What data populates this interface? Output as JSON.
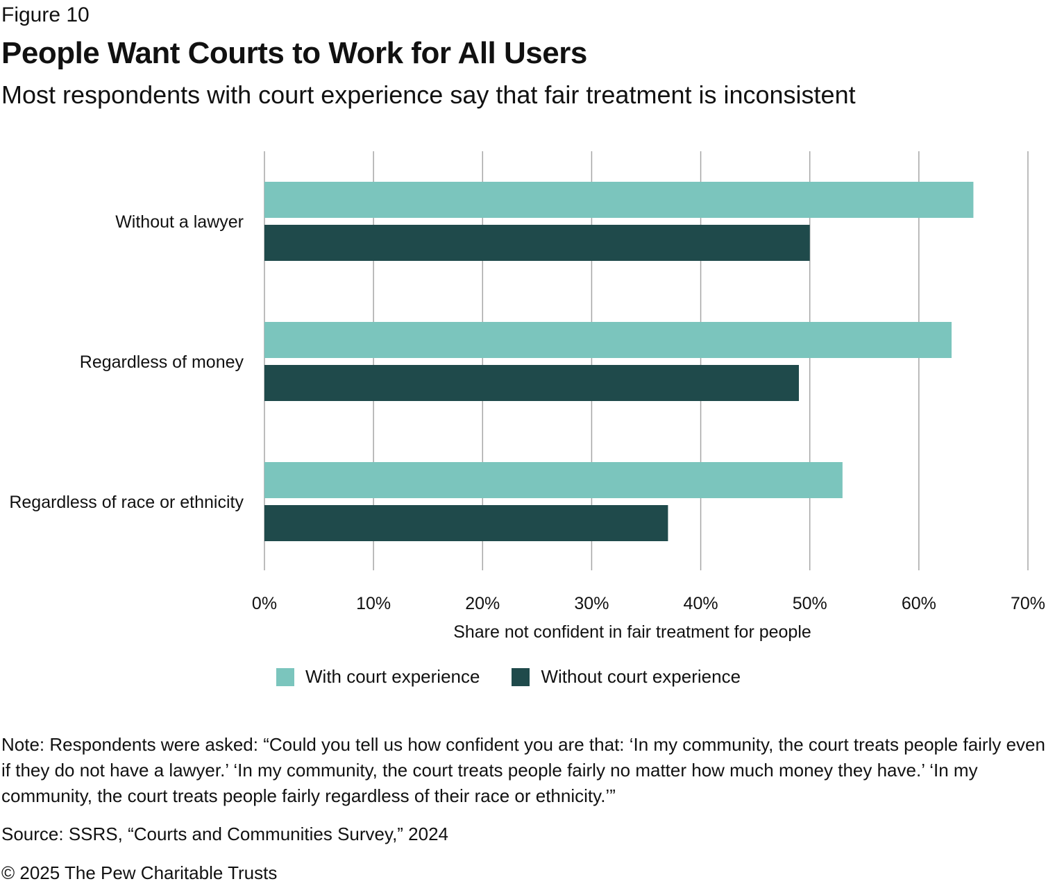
{
  "figure_label": "Figure 10",
  "title": "People Want Courts to Work for All Users",
  "subtitle": "Most respondents with court experience say that fair treatment is inconsistent",
  "chart_data": {
    "type": "bar",
    "orientation": "horizontal",
    "categories": [
      "Without a lawyer",
      "Regardless of money",
      "Regardless of race or ethnicity"
    ],
    "series": [
      {
        "name": "With court experience",
        "values": [
          65,
          63,
          53
        ],
        "color": "#7bc5bd"
      },
      {
        "name": "Without court experience",
        "values": [
          50,
          49,
          37
        ],
        "color": "#1f4a4b"
      }
    ],
    "xlabel": "Share not confident in fair treatment for people",
    "xlim": [
      0,
      70
    ],
    "xticks": [
      "0%",
      "10%",
      "20%",
      "30%",
      "40%",
      "50%",
      "60%",
      "70%"
    ],
    "grid": true,
    "legend_position": "bottom"
  },
  "legend": [
    {
      "label": "With court experience",
      "color": "#7bc5bd"
    },
    {
      "label": "Without court experience",
      "color": "#1f4a4b"
    }
  ],
  "note": "Note: Respondents were asked: “Could you tell us how confident you are that: ‘In my community, the court treats people fairly even if they do not have a lawyer.’ ‘In my community, the court treats people fairly no matter how much money they have.’ ‘In my community, the court treats people fairly regardless of their race or ethnicity.’”",
  "source": "Source: SSRS, “Courts and Communities Survey,” 2024",
  "copyright": "© 2025 The Pew Charitable Trusts"
}
